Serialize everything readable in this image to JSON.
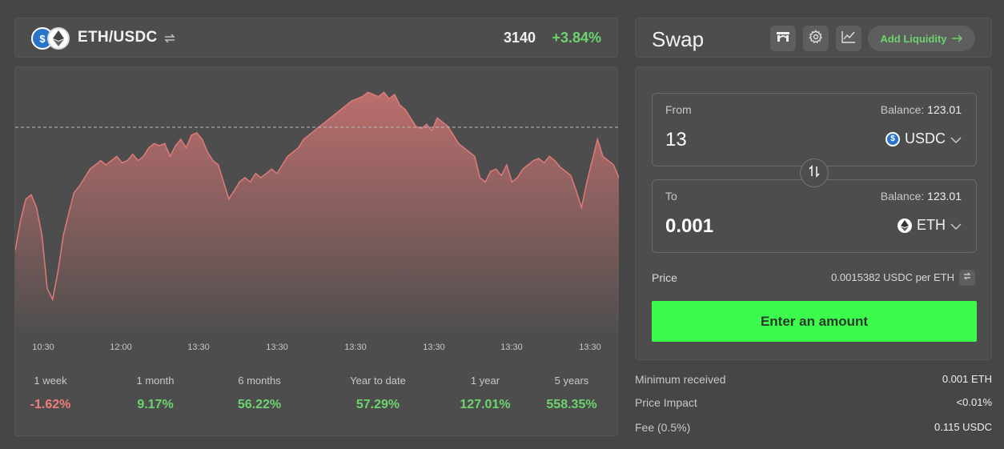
{
  "pair": {
    "name": "ETH/USDC",
    "price": "3140",
    "change": "+3.84%"
  },
  "chart_data": {
    "type": "area",
    "x_tick_labels": [
      "10:30",
      "12:00",
      "13:30",
      "13:30",
      "13:30",
      "13:30",
      "13:30",
      "13:30"
    ],
    "reference_line": true,
    "y": [
      38,
      52,
      62,
      64,
      58,
      45,
      20,
      15,
      28,
      45,
      55,
      65,
      68,
      72,
      76,
      78,
      80,
      78,
      80,
      82,
      79,
      80,
      83,
      80,
      82,
      86,
      88,
      87,
      88,
      82,
      87,
      90,
      86,
      92,
      93,
      90,
      84,
      80,
      78,
      70,
      62,
      66,
      70,
      72,
      70,
      74,
      72,
      74,
      76,
      74,
      78,
      82,
      84,
      86,
      90,
      92,
      94,
      96,
      98,
      100,
      102,
      104,
      106,
      108,
      109,
      110,
      112,
      111,
      110,
      112,
      109,
      111,
      106,
      104,
      100,
      96,
      95,
      97,
      94,
      100,
      98,
      96,
      92,
      88,
      86,
      84,
      82,
      72,
      70,
      75,
      76,
      73,
      78,
      70,
      72,
      76,
      78,
      80,
      81,
      79,
      82,
      80,
      77,
      75,
      73,
      66,
      58,
      70,
      80,
      90,
      82,
      80,
      78,
      72
    ],
    "series": [
      {
        "color": "#e07a78"
      }
    ],
    "grid": false
  },
  "performance": [
    {
      "label": "1 week",
      "value": "-1.62%",
      "color": "#f07c7c"
    },
    {
      "label": "1 month",
      "value": "9.17%",
      "color": "#6dd36d"
    },
    {
      "label": "6 months",
      "value": "56.22%",
      "color": "#6dd36d"
    },
    {
      "label": "Year to date",
      "value": "57.29%",
      "color": "#6dd36d"
    },
    {
      "label": "1 year",
      "value": "127.01%",
      "color": "#6dd36d"
    },
    {
      "label": "5 years",
      "value": "558.35%",
      "color": "#6dd36d"
    }
  ],
  "swap": {
    "title": "Swap",
    "add_liquidity": "Add Liquidity",
    "from": {
      "label": "From",
      "balance_label": "Balance:",
      "balance": "123.01",
      "amount": "13",
      "token": "USDC"
    },
    "to": {
      "label": "To",
      "balance_label": "Balance:",
      "balance": "123.01",
      "amount": "0.001",
      "token": "ETH"
    },
    "price_label": "Price",
    "price_value": "0.0015382 USDC per ETH",
    "enter_button": "Enter an amount"
  },
  "summary": {
    "min_received_label": "Minimum received",
    "min_received_value": "0.001 ETH",
    "price_impact_label": "Price Impact",
    "price_impact_value": "<0.01%",
    "fee_label": "Fee (0.5%)",
    "fee_value": "0.115 USDC"
  },
  "colors": {
    "accent_green": "#3dfb4d",
    "positive": "#6dd36d",
    "negative": "#f07c7c"
  }
}
